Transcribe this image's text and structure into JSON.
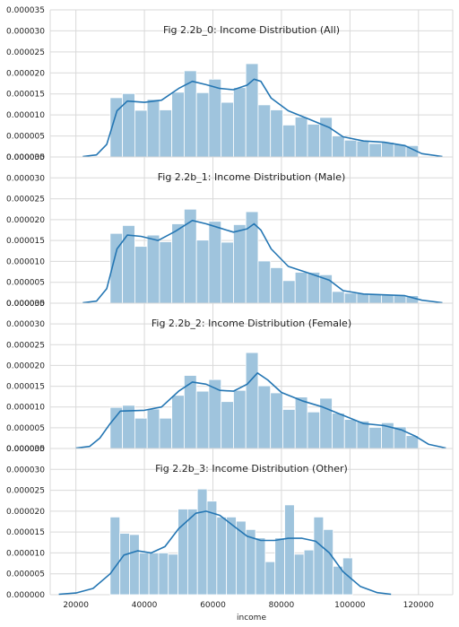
{
  "chart_data": {
    "type": "histogram-kde",
    "x_tick_labels": [
      "20000",
      "40000",
      "60000",
      "80000",
      "100000",
      "120000"
    ],
    "x_ticks": [
      20000,
      40000,
      60000,
      80000,
      100000,
      120000
    ],
    "xlim": [
      12500,
      130000
    ],
    "xlabel": "income",
    "ylim": [
      0,
      3.5e-05
    ],
    "y_tick_labels": [
      "0.000000",
      "0.000005",
      "0.000010",
      "0.000015",
      "0.000020",
      "0.000025",
      "0.000030",
      "0.000035"
    ],
    "grid": true,
    "bar_color": "#9fc4dd",
    "line_color": "#2476b3",
    "grid_color": "#d9d9d9",
    "panels": [
      {
        "title": "Fig 2.2b_0: Income Distribution (All)",
        "bin_start": 30000,
        "bin_width": 3600,
        "bar_values": [
          1.41e-05,
          1.51e-05,
          1.11e-05,
          1.37e-05,
          1.12e-05,
          1.54e-05,
          2.05e-05,
          1.53e-05,
          1.85e-05,
          1.3e-05,
          1.65e-05,
          2.22e-05,
          1.24e-05,
          1.12e-05,
          7.6e-06,
          9.5e-06,
          7.8e-06,
          9.4e-06,
          5e-06,
          4e-06,
          3.8e-06,
          3.2e-06,
          3.5e-06,
          3e-06,
          2.7e-06
        ],
        "kde": [
          [
            22000,
            1e-07
          ],
          [
            26000,
            5e-07
          ],
          [
            29000,
            3e-06
          ],
          [
            32000,
            1.1e-05
          ],
          [
            35000,
            1.33e-05
          ],
          [
            40000,
            1.3e-05
          ],
          [
            45000,
            1.35e-05
          ],
          [
            50000,
            1.63e-05
          ],
          [
            54000,
            1.8e-05
          ],
          [
            58000,
            1.72e-05
          ],
          [
            62000,
            1.63e-05
          ],
          [
            66000,
            1.6e-05
          ],
          [
            70000,
            1.71e-05
          ],
          [
            72000,
            1.85e-05
          ],
          [
            74000,
            1.8e-05
          ],
          [
            77000,
            1.4e-05
          ],
          [
            82000,
            1.1e-05
          ],
          [
            88000,
            9e-06
          ],
          [
            94000,
            7e-06
          ],
          [
            98000,
            4.8e-06
          ],
          [
            104000,
            3.8e-06
          ],
          [
            110000,
            3.5e-06
          ],
          [
            116000,
            2.7e-06
          ],
          [
            121000,
            8e-07
          ],
          [
            127000,
            1e-07
          ]
        ]
      },
      {
        "title": "Fig 2.2b_1: Income Distribution (Male)",
        "bin_start": 30000,
        "bin_width": 3600,
        "bar_values": [
          1.67e-05,
          1.86e-05,
          1.36e-05,
          1.63e-05,
          1.47e-05,
          1.9e-05,
          2.25e-05,
          1.51e-05,
          1.96e-05,
          1.46e-05,
          1.88e-05,
          2.19e-05,
          1.01e-05,
          8.5e-06,
          5.4e-06,
          7.4e-06,
          7.4e-06,
          6.8e-06,
          2.8e-06,
          2.4e-06,
          2.3e-06,
          2.1e-06,
          2e-06,
          1.8e-06,
          1.8e-06
        ],
        "kde": [
          [
            22000,
            1e-07
          ],
          [
            26000,
            5e-07
          ],
          [
            29000,
            3.5e-06
          ],
          [
            32000,
            1.3e-05
          ],
          [
            35000,
            1.63e-05
          ],
          [
            39000,
            1.6e-05
          ],
          [
            44000,
            1.5e-05
          ],
          [
            49000,
            1.72e-05
          ],
          [
            54000,
            1.98e-05
          ],
          [
            58000,
            1.9e-05
          ],
          [
            62000,
            1.8e-05
          ],
          [
            66000,
            1.7e-05
          ],
          [
            70000,
            1.78e-05
          ],
          [
            72000,
            1.9e-05
          ],
          [
            74000,
            1.75e-05
          ],
          [
            77000,
            1.3e-05
          ],
          [
            82000,
            8.8e-06
          ],
          [
            88000,
            7.2e-06
          ],
          [
            94000,
            5.5e-06
          ],
          [
            98000,
            3e-06
          ],
          [
            104000,
            2.2e-06
          ],
          [
            110000,
            2e-06
          ],
          [
            116000,
            1.8e-06
          ],
          [
            121000,
            7e-07
          ],
          [
            127000,
            1e-07
          ]
        ]
      },
      {
        "title": "Fig 2.2b_2: Income Distribution (Female)",
        "bin_start": 30000,
        "bin_width": 3600,
        "bar_values": [
          9.9e-06,
          1.04e-05,
          7.3e-06,
          9.5e-06,
          7.3e-06,
          1.28e-05,
          1.76e-05,
          1.38e-05,
          1.66e-05,
          1.13e-05,
          1.4e-05,
          2.31e-05,
          1.51e-05,
          1.34e-05,
          9.4e-06,
          1.24e-05,
          8.8e-06,
          1.21e-05,
          8.5e-06,
          7e-06,
          6.6e-06,
          5.1e-06,
          6.2e-06,
          5.2e-06,
          3.1e-06
        ],
        "kde": [
          [
            20000,
            1e-07
          ],
          [
            24000,
            5e-07
          ],
          [
            27000,
            2.5e-06
          ],
          [
            30000,
            6e-06
          ],
          [
            33000,
            9e-06
          ],
          [
            40000,
            9.2e-06
          ],
          [
            45000,
            1e-05
          ],
          [
            50000,
            1.38e-05
          ],
          [
            54000,
            1.6e-05
          ],
          [
            58000,
            1.55e-05
          ],
          [
            62000,
            1.4e-05
          ],
          [
            66000,
            1.38e-05
          ],
          [
            70000,
            1.55e-05
          ],
          [
            73000,
            1.82e-05
          ],
          [
            76000,
            1.65e-05
          ],
          [
            80000,
            1.35e-05
          ],
          [
            86000,
            1.15e-05
          ],
          [
            92000,
            1e-05
          ],
          [
            98000,
            8e-06
          ],
          [
            104000,
            6e-06
          ],
          [
            110000,
            5.5e-06
          ],
          [
            115000,
            4.5e-06
          ],
          [
            119000,
            3e-06
          ],
          [
            123000,
            1e-06
          ],
          [
            128000,
            1e-07
          ]
        ]
      },
      {
        "title": "Fig 2.2b_3: Income Distribution (Other)",
        "bin_start": 30000,
        "bin_width": 2830,
        "bar_values": [
          1.86e-05,
          1.47e-05,
          1.44e-05,
          1e-05,
          1e-05,
          1e-05,
          9.7e-06,
          2.05e-05,
          2.05e-05,
          2.53e-05,
          2.24e-05,
          1.86e-05,
          1.86e-05,
          1.76e-05,
          1.56e-05,
          1.36e-05,
          7.9e-06,
          1.36e-05,
          2.15e-05,
          9.7e-06,
          1.07e-05,
          1.86e-05,
          1.56e-05,
          6.8e-06,
          8.8e-06
        ],
        "kde": [
          [
            15000,
            1e-07
          ],
          [
            20000,
            4e-07
          ],
          [
            25000,
            1.5e-06
          ],
          [
            30000,
            5e-06
          ],
          [
            34000,
            9.5e-06
          ],
          [
            38000,
            1.05e-05
          ],
          [
            42000,
            1e-05
          ],
          [
            46000,
            1.15e-05
          ],
          [
            50000,
            1.58e-05
          ],
          [
            55000,
            1.95e-05
          ],
          [
            58000,
            2e-05
          ],
          [
            62000,
            1.9e-05
          ],
          [
            66000,
            1.65e-05
          ],
          [
            70000,
            1.4e-05
          ],
          [
            74000,
            1.3e-05
          ],
          [
            78000,
            1.3e-05
          ],
          [
            82000,
            1.35e-05
          ],
          [
            86000,
            1.35e-05
          ],
          [
            90000,
            1.28e-05
          ],
          [
            94000,
            1e-05
          ],
          [
            98000,
            5.5e-06
          ],
          [
            103000,
            2e-06
          ],
          [
            108000,
            5e-07
          ],
          [
            112000,
            1e-07
          ]
        ]
      }
    ]
  }
}
